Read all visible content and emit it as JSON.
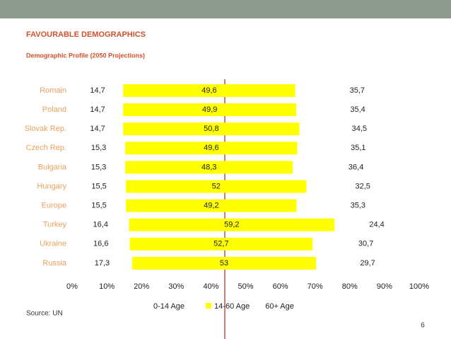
{
  "header": {
    "title": "FAVOURABLE DEMOGRAPHICS",
    "subtitle": "Demographic Profile (2050 Projections)"
  },
  "chart_data": {
    "type": "stacked-barh",
    "categories": [
      "Romain",
      "Poland",
      "Slovak Rep.",
      "Czech Rep.",
      "Bulgaria",
      "Hungary",
      "Europe",
      "Turkey",
      "Ukraine",
      "Russia"
    ],
    "series": [
      {
        "name": "0-14 Age",
        "color": "#ffffff",
        "values": [
          14.7,
          14.7,
          14.7,
          15.3,
          15.3,
          15.5,
          15.5,
          16.4,
          16.6,
          17.3
        ],
        "value_labels": [
          "14,7",
          "14,7",
          "14,7",
          "15,3",
          "15,3",
          "15,5",
          "15,5",
          "16,4",
          "16,6",
          "17,3"
        ]
      },
      {
        "name": "14-60 Age",
        "color": "#ffff00",
        "values": [
          49.6,
          49.9,
          50.8,
          49.6,
          48.3,
          52,
          49.2,
          59.2,
          52.7,
          53
        ],
        "value_labels": [
          "49,6",
          "49,9",
          "50,8",
          "49,6",
          "48,3",
          "52",
          "49,2",
          "59,2",
          "52,7",
          "53"
        ]
      },
      {
        "name": "60+ Age",
        "color": "#ffffff",
        "values": [
          35.7,
          35.4,
          34.5,
          35.1,
          36.4,
          32.5,
          35.3,
          24.4,
          30.7,
          29.7
        ],
        "value_labels": [
          "35,7",
          "35,4",
          "34,5",
          "35,1",
          "36,4",
          "32,5",
          "35,3",
          "24,4",
          "30,7",
          "29,7"
        ]
      }
    ],
    "xlim": [
      0,
      100
    ],
    "xticks": [
      {
        "value": 0,
        "label": "0%"
      },
      {
        "value": 10,
        "label": "10%"
      },
      {
        "value": 20,
        "label": "20%"
      },
      {
        "value": 30,
        "label": "30%"
      },
      {
        "value": 40,
        "label": "40%"
      },
      {
        "value": 50,
        "label": "50%"
      },
      {
        "value": 60,
        "label": "60%"
      },
      {
        "value": 70,
        "label": "70%"
      },
      {
        "value": 80,
        "label": "80%"
      },
      {
        "value": 90,
        "label": "90%"
      },
      {
        "value": 100,
        "label": "100%"
      }
    ],
    "legend": "bottom"
  },
  "source": "Source: UN",
  "page_number": "6"
}
